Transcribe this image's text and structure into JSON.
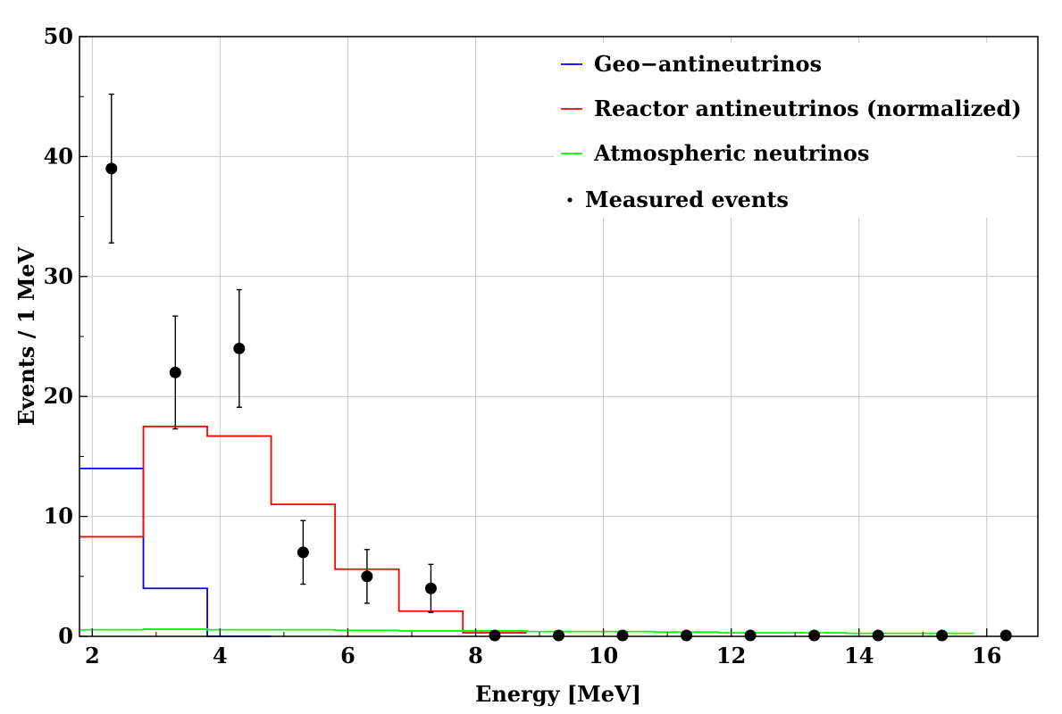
{
  "chart_data": {
    "type": "line",
    "xlabel": "Energy [MeV]",
    "ylabel": "Events / 1 MeV",
    "xlim": [
      1.8,
      16.8
    ],
    "ylim": [
      0,
      50
    ],
    "x_ticks": [
      2,
      4,
      6,
      8,
      10,
      12,
      14,
      16
    ],
    "y_ticks": [
      0,
      10,
      20,
      30,
      40,
      50
    ],
    "grid": true,
    "legend_position": "top-right",
    "series": [
      {
        "name": "Geo−antineutrinos",
        "kind": "step",
        "color": "#0000ff",
        "bins": [
          {
            "x0": 1.8,
            "x1": 2.8,
            "y": 14.0
          },
          {
            "x0": 2.8,
            "x1": 3.8,
            "y": 4.0
          },
          {
            "x0": 3.8,
            "x1": 4.8,
            "y": 0.0
          }
        ]
      },
      {
        "name": "Reactor antineutrinos (normalized)",
        "kind": "step",
        "color": "#ff0000",
        "bins": [
          {
            "x0": 1.8,
            "x1": 2.8,
            "y": 8.3
          },
          {
            "x0": 2.8,
            "x1": 3.8,
            "y": 17.5
          },
          {
            "x0": 3.8,
            "x1": 4.8,
            "y": 16.7
          },
          {
            "x0": 4.8,
            "x1": 5.8,
            "y": 11.0
          },
          {
            "x0": 5.8,
            "x1": 6.8,
            "y": 5.6
          },
          {
            "x0": 6.8,
            "x1": 7.8,
            "y": 2.1
          },
          {
            "x0": 7.8,
            "x1": 8.8,
            "y": 0.3
          }
        ]
      },
      {
        "name": "Atmospheric neutrinos",
        "kind": "step",
        "color": "#00ff00",
        "bins": [
          {
            "x0": 1.8,
            "x1": 2.8,
            "y": 0.55
          },
          {
            "x0": 2.8,
            "x1": 3.8,
            "y": 0.6
          },
          {
            "x0": 3.8,
            "x1": 4.8,
            "y": 0.55
          },
          {
            "x0": 4.8,
            "x1": 5.8,
            "y": 0.55
          },
          {
            "x0": 5.8,
            "x1": 6.8,
            "y": 0.5
          },
          {
            "x0": 6.8,
            "x1": 7.8,
            "y": 0.45
          },
          {
            "x0": 7.8,
            "x1": 8.8,
            "y": 0.45
          },
          {
            "x0": 8.8,
            "x1": 9.8,
            "y": 0.4
          },
          {
            "x0": 9.8,
            "x1": 10.8,
            "y": 0.4
          },
          {
            "x0": 10.8,
            "x1": 11.8,
            "y": 0.35
          },
          {
            "x0": 11.8,
            "x1": 12.8,
            "y": 0.3
          },
          {
            "x0": 12.8,
            "x1": 13.8,
            "y": 0.3
          },
          {
            "x0": 13.8,
            "x1": 14.8,
            "y": 0.25
          },
          {
            "x0": 14.8,
            "x1": 15.8,
            "y": 0.25
          }
        ]
      },
      {
        "name": "Measured events",
        "kind": "points",
        "color": "#000000",
        "points": [
          {
            "x": 2.3,
            "y": 39,
            "err": 6.2
          },
          {
            "x": 3.3,
            "y": 22,
            "err": 4.7
          },
          {
            "x": 4.3,
            "y": 24,
            "err": 4.9
          },
          {
            "x": 5.3,
            "y": 7,
            "err": 2.65
          },
          {
            "x": 6.3,
            "y": 5,
            "err": 2.24
          },
          {
            "x": 7.3,
            "y": 4,
            "err": 2.0
          },
          {
            "x": 8.3,
            "y": 0,
            "err": 0
          },
          {
            "x": 9.3,
            "y": 0,
            "err": 0
          },
          {
            "x": 10.3,
            "y": 0,
            "err": 0
          },
          {
            "x": 11.3,
            "y": 0,
            "err": 0
          },
          {
            "x": 12.3,
            "y": 0,
            "err": 0
          },
          {
            "x": 13.3,
            "y": 0,
            "err": 0
          },
          {
            "x": 14.3,
            "y": 0,
            "err": 0
          },
          {
            "x": 15.3,
            "y": 0,
            "err": 0
          },
          {
            "x": 16.3,
            "y": 0,
            "err": 0
          }
        ]
      }
    ]
  }
}
